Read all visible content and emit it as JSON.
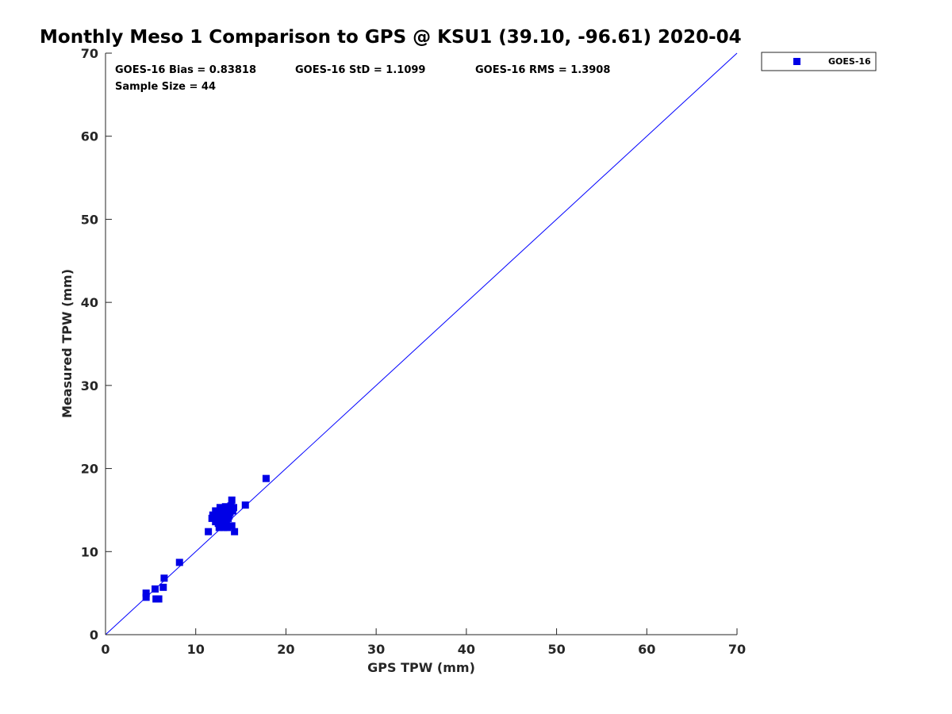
{
  "title": "Monthly Meso 1 Comparison to GPS @ KSU1 (39.10, -96.61) 2020-04",
  "stats": {
    "bias": "GOES-16 Bias = 0.83818",
    "std": "GOES-16 StD = 1.1099",
    "rms": "GOES-16 RMS = 1.3908",
    "sample_size": "Sample Size = 44"
  },
  "legend": {
    "label": "GOES-16"
  },
  "colors": {
    "series": "#0000e6",
    "line": "#0000ff",
    "axis": "#262626"
  },
  "chart_data": {
    "type": "scatter",
    "title": "Monthly Meso 1 Comparison to GPS @ KSU1 (39.10, -96.61) 2020-04",
    "xlabel": "GPS TPW (mm)",
    "ylabel": "Measured TPW (mm)",
    "xlim": [
      0,
      70
    ],
    "ylim": [
      0,
      70
    ],
    "xticks": [
      0,
      10,
      20,
      30,
      40,
      50,
      60,
      70
    ],
    "yticks": [
      0,
      10,
      20,
      30,
      40,
      50,
      60,
      70
    ],
    "grid": false,
    "legend_position": "top-right outside",
    "reference_line": {
      "x": [
        0,
        70
      ],
      "y": [
        0,
        70
      ]
    },
    "series": [
      {
        "name": "GOES-16",
        "marker": "square",
        "points": [
          [
            4.5,
            4.5
          ],
          [
            4.5,
            5.0
          ],
          [
            5.5,
            5.5
          ],
          [
            5.6,
            4.3
          ],
          [
            5.9,
            4.3
          ],
          [
            6.4,
            5.7
          ],
          [
            6.5,
            6.8
          ],
          [
            8.2,
            8.7
          ],
          [
            11.4,
            12.4
          ],
          [
            11.8,
            14.0
          ],
          [
            11.9,
            14.4
          ],
          [
            12.2,
            13.6
          ],
          [
            12.3,
            14.2
          ],
          [
            12.5,
            13.4
          ],
          [
            12.6,
            12.9
          ],
          [
            12.7,
            15.3
          ],
          [
            12.7,
            14.4
          ],
          [
            12.8,
            13.9
          ],
          [
            12.9,
            15.0
          ],
          [
            13.0,
            13.3
          ],
          [
            13.0,
            14.6
          ],
          [
            13.1,
            12.9
          ],
          [
            13.2,
            14.1
          ],
          [
            13.3,
            15.4
          ],
          [
            13.4,
            13.7
          ],
          [
            13.5,
            14.8
          ],
          [
            13.5,
            12.9
          ],
          [
            13.6,
            15.1
          ],
          [
            13.7,
            14.3
          ],
          [
            13.8,
            14.7
          ],
          [
            14.0,
            16.2
          ],
          [
            14.0,
            13.1
          ],
          [
            14.1,
            14.9
          ],
          [
            14.2,
            15.3
          ],
          [
            14.3,
            12.4
          ],
          [
            15.5,
            15.6
          ],
          [
            17.8,
            18.8
          ],
          [
            12.4,
            14.8
          ],
          [
            12.9,
            13.2
          ],
          [
            13.6,
            14.0
          ],
          [
            12.2,
            14.9
          ],
          [
            13.9,
            15.5
          ],
          [
            12.6,
            13.7
          ],
          [
            13.3,
            14.5
          ]
        ]
      }
    ]
  }
}
